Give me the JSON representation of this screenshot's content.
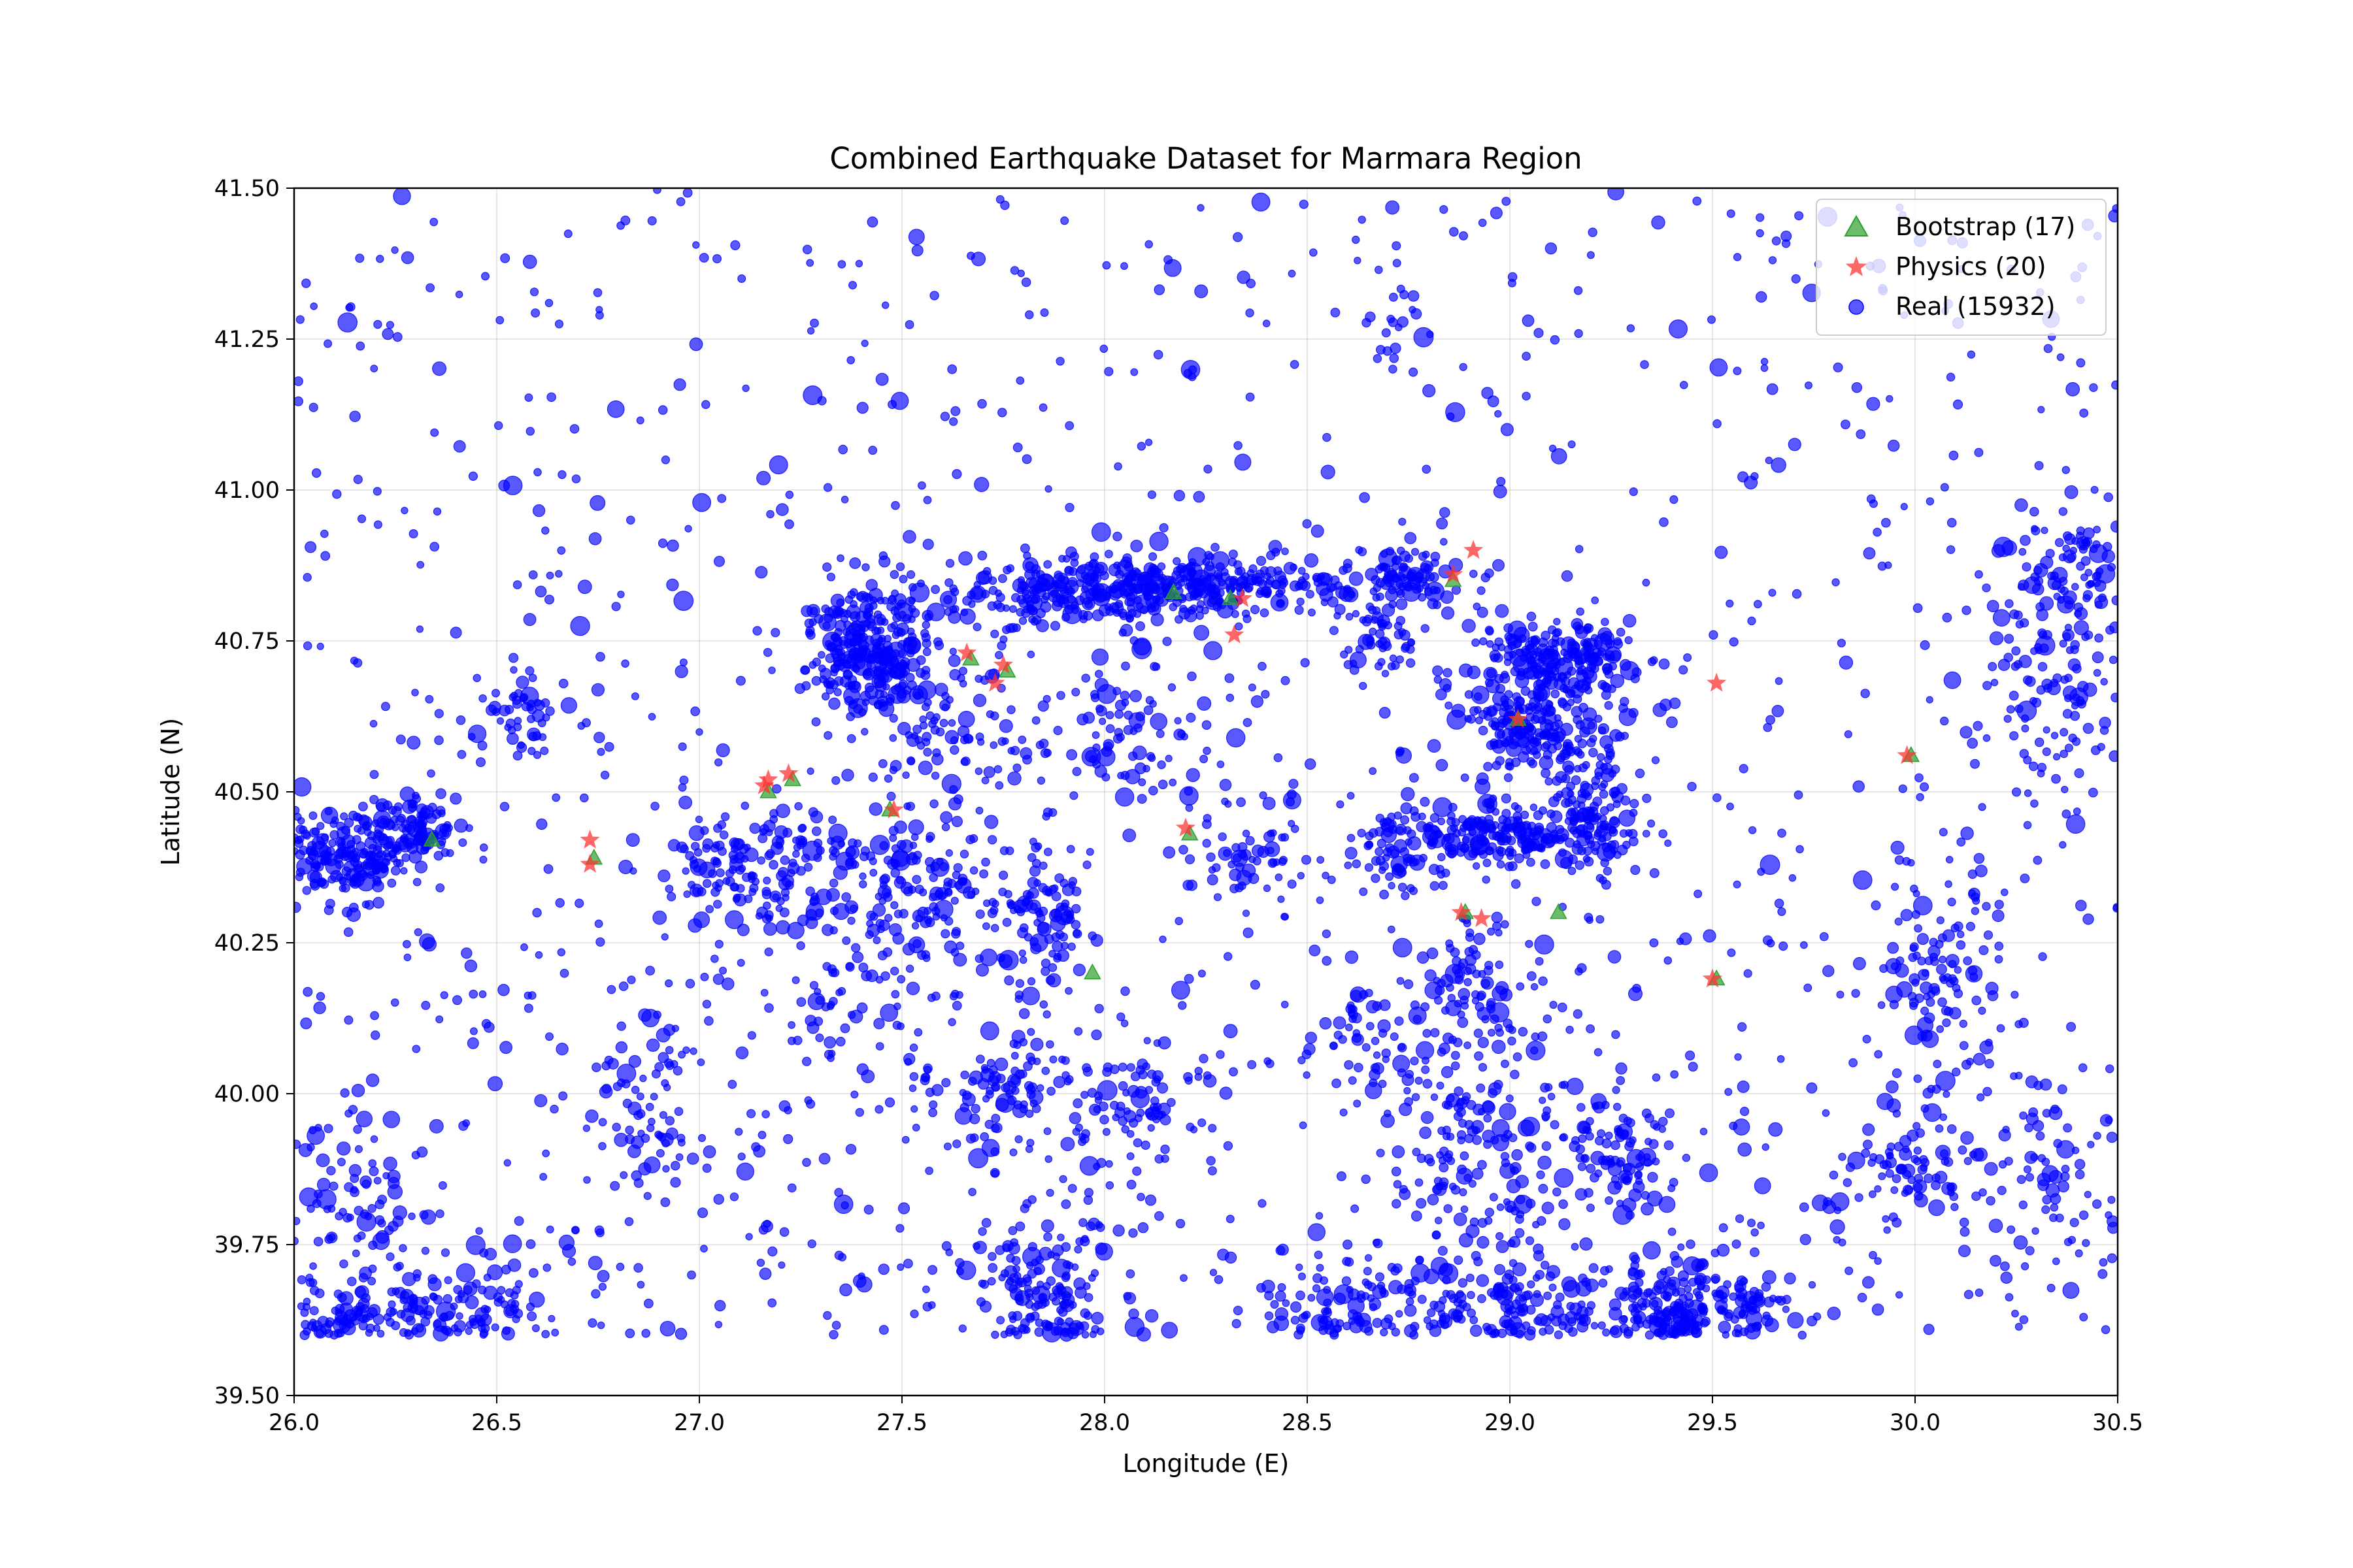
{
  "chart_data": {
    "type": "scatter",
    "title": "Combined Earthquake Dataset for Marmara Region",
    "xlabel": "Longitude (E)",
    "ylabel": "Latitude (N)",
    "xlim": [
      26.0,
      30.5
    ],
    "ylim": [
      39.5,
      41.5
    ],
    "xticks": [
      "26.0",
      "26.5",
      "27.0",
      "27.5",
      "28.0",
      "28.5",
      "29.0",
      "29.5",
      "30.0",
      "30.5"
    ],
    "yticks": [
      "39.50",
      "39.75",
      "40.00",
      "40.25",
      "40.50",
      "40.75",
      "41.00",
      "41.25",
      "41.50"
    ],
    "grid": true,
    "legend_position": "top-right",
    "series": [
      {
        "name": "Bootstrap (17)",
        "marker": "triangle",
        "color": "#2ca02c",
        "x": [
          26.34,
          27.97,
          28.31,
          27.47,
          28.21,
          28.86,
          29.99,
          29.51,
          27.17,
          26.74,
          27.67,
          28.89,
          29.02,
          27.76,
          28.17,
          27.23,
          29.12
        ],
        "y": [
          40.42,
          40.2,
          40.82,
          40.47,
          40.43,
          40.85,
          40.56,
          40.19,
          40.5,
          40.39,
          40.72,
          40.3,
          40.62,
          40.7,
          40.83,
          40.52,
          40.3
        ]
      },
      {
        "name": "Physics (20)",
        "marker": "star",
        "color": "#ff3333",
        "x": [
          26.73,
          26.73,
          27.16,
          27.22,
          27.48,
          27.66,
          27.73,
          28.2,
          28.32,
          28.86,
          28.91,
          28.88,
          28.93,
          29.51,
          29.5,
          29.98,
          27.17,
          28.34,
          29.02,
          27.75
        ],
        "y": [
          40.42,
          40.38,
          40.51,
          40.53,
          40.47,
          40.73,
          40.68,
          40.44,
          40.76,
          40.86,
          40.9,
          40.3,
          40.29,
          40.68,
          40.19,
          40.56,
          40.52,
          40.82,
          40.62,
          40.71
        ]
      },
      {
        "name": "Real (15932)",
        "marker": "circle",
        "color": "#0000ff",
        "count": 15932,
        "clusters": [
          {
            "x": 26.12,
            "y": 40.4,
            "sx": 0.1,
            "sy": 0.04,
            "w": 0.9
          },
          {
            "x": 26.3,
            "y": 40.44,
            "sx": 0.06,
            "sy": 0.03,
            "w": 0.4
          },
          {
            "x": 27.42,
            "y": 40.74,
            "sx": 0.08,
            "sy": 0.05,
            "w": 1.2
          },
          {
            "x": 27.9,
            "y": 40.83,
            "sx": 0.2,
            "sy": 0.03,
            "w": 1.0
          },
          {
            "x": 28.25,
            "y": 40.84,
            "sx": 0.18,
            "sy": 0.025,
            "w": 1.0
          },
          {
            "x": 28.72,
            "y": 40.85,
            "sx": 0.08,
            "sy": 0.03,
            "w": 0.4
          },
          {
            "x": 29.12,
            "y": 40.72,
            "sx": 0.12,
            "sy": 0.03,
            "w": 0.9
          },
          {
            "x": 29.05,
            "y": 40.61,
            "sx": 0.09,
            "sy": 0.04,
            "w": 0.8
          },
          {
            "x": 29.0,
            "y": 40.43,
            "sx": 0.16,
            "sy": 0.025,
            "w": 0.9
          },
          {
            "x": 29.2,
            "y": 40.48,
            "sx": 0.05,
            "sy": 0.06,
            "w": 0.5
          },
          {
            "x": 29.44,
            "y": 39.65,
            "sx": 0.12,
            "sy": 0.04,
            "w": 1.0
          },
          {
            "x": 27.15,
            "y": 40.37,
            "sx": 0.12,
            "sy": 0.05,
            "w": 0.7
          },
          {
            "x": 27.55,
            "y": 40.35,
            "sx": 0.12,
            "sy": 0.05,
            "w": 0.6
          },
          {
            "x": 27.85,
            "y": 40.3,
            "sx": 0.05,
            "sy": 0.06,
            "w": 0.4
          },
          {
            "x": 27.85,
            "y": 39.68,
            "sx": 0.08,
            "sy": 0.06,
            "w": 0.6
          },
          {
            "x": 28.9,
            "y": 39.92,
            "sx": 0.1,
            "sy": 0.12,
            "w": 0.7
          },
          {
            "x": 28.9,
            "y": 40.18,
            "sx": 0.08,
            "sy": 0.06,
            "w": 0.4
          },
          {
            "x": 29.25,
            "y": 39.9,
            "sx": 0.08,
            "sy": 0.06,
            "w": 0.4
          },
          {
            "x": 30.05,
            "y": 40.2,
            "sx": 0.08,
            "sy": 0.1,
            "w": 0.5
          },
          {
            "x": 30.35,
            "y": 40.7,
            "sx": 0.1,
            "sy": 0.1,
            "w": 0.5
          },
          {
            "x": 30.4,
            "y": 40.88,
            "sx": 0.08,
            "sy": 0.05,
            "w": 0.3
          },
          {
            "x": 26.15,
            "y": 39.8,
            "sx": 0.1,
            "sy": 0.08,
            "w": 0.4
          },
          {
            "x": 26.12,
            "y": 39.63,
            "sx": 0.08,
            "sy": 0.03,
            "w": 0.3
          },
          {
            "x": 26.45,
            "y": 39.64,
            "sx": 0.08,
            "sy": 0.04,
            "w": 0.35
          },
          {
            "x": 26.55,
            "y": 40.63,
            "sx": 0.05,
            "sy": 0.04,
            "w": 0.2
          },
          {
            "x": 28.05,
            "y": 39.98,
            "sx": 0.1,
            "sy": 0.06,
            "w": 0.4
          },
          {
            "x": 27.75,
            "y": 40.0,
            "sx": 0.1,
            "sy": 0.05,
            "w": 0.35
          },
          {
            "x": 26.88,
            "y": 39.98,
            "sx": 0.06,
            "sy": 0.08,
            "w": 0.3
          },
          {
            "x": 28.6,
            "y": 39.65,
            "sx": 0.1,
            "sy": 0.05,
            "w": 0.4
          },
          {
            "x": 28.95,
            "y": 39.65,
            "sx": 0.12,
            "sy": 0.04,
            "w": 0.5
          },
          {
            "x": 28.72,
            "y": 41.27,
            "sx": 0.04,
            "sy": 0.04,
            "w": 0.1
          },
          {
            "x": 29.98,
            "y": 39.88,
            "sx": 0.08,
            "sy": 0.04,
            "w": 0.3
          },
          {
            "x": 30.35,
            "y": 39.85,
            "sx": 0.12,
            "sy": 0.08,
            "w": 0.3
          },
          {
            "x": 28.35,
            "y": 40.4,
            "sx": 0.1,
            "sy": 0.05,
            "w": 0.3
          },
          {
            "x": 28.68,
            "y": 40.75,
            "sx": 0.05,
            "sy": 0.03,
            "w": 0.2
          },
          {
            "x": 28.65,
            "y": 40.08,
            "sx": 0.06,
            "sy": 0.05,
            "w": 0.2
          },
          {
            "x": 27.6,
            "y": 40.6,
            "sx": 0.12,
            "sy": 0.06,
            "w": 0.4
          },
          {
            "x": 28.05,
            "y": 40.6,
            "sx": 0.12,
            "sy": 0.06,
            "w": 0.3
          },
          {
            "x": 27.4,
            "y": 40.15,
            "sx": 0.15,
            "sy": 0.1,
            "w": 0.4
          },
          {
            "x": 28.7,
            "y": 40.4,
            "sx": 0.06,
            "sy": 0.03,
            "w": 0.25
          }
        ],
        "background_range": {
          "x": [
            26.0,
            30.5
          ],
          "y": [
            39.6,
            41.5
          ]
        }
      }
    ]
  }
}
